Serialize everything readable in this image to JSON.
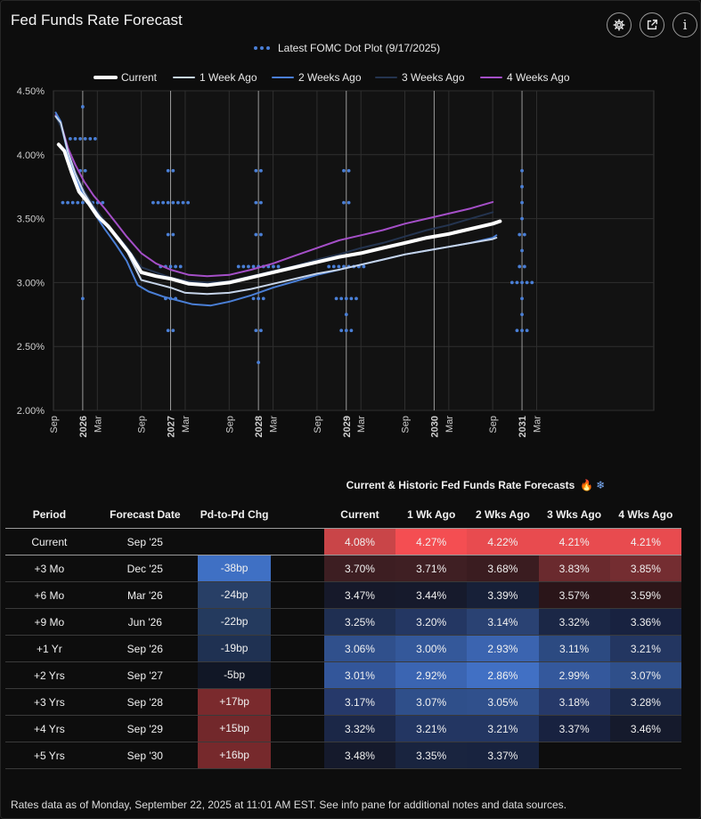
{
  "header": {
    "title": "Fed Funds Rate Forecast",
    "settings_icon": "gear-icon",
    "share_icon": "external-link-icon",
    "info_icon": "info-icon",
    "info_label": "i"
  },
  "chart_data": {
    "type": "line",
    "title": "Fed Funds Rate Forecast",
    "dot_plot_label": "Latest FOMC Dot Plot (9/17/2025)",
    "ylim": [
      2.0,
      4.5
    ],
    "yticks": [
      "2.00%",
      "2.50%",
      "3.00%",
      "3.50%",
      "4.00%",
      "4.50%"
    ],
    "ytick_values": [
      2.0,
      2.5,
      3.0,
      3.5,
      4.0,
      4.5
    ],
    "xlim": [
      0,
      82
    ],
    "xticks": [
      {
        "label": "Sep",
        "m": 0,
        "bold": false
      },
      {
        "label": "2026",
        "m": 4,
        "bold": true
      },
      {
        "label": "Mar",
        "m": 6,
        "bold": false
      },
      {
        "label": "Sep",
        "m": 12,
        "bold": false
      },
      {
        "label": "2027",
        "m": 16,
        "bold": true
      },
      {
        "label": "Mar",
        "m": 18,
        "bold": false
      },
      {
        "label": "Sep",
        "m": 24,
        "bold": false
      },
      {
        "label": "2028",
        "m": 28,
        "bold": true
      },
      {
        "label": "Mar",
        "m": 30,
        "bold": false
      },
      {
        "label": "Sep",
        "m": 36,
        "bold": false
      },
      {
        "label": "2029",
        "m": 40,
        "bold": true
      },
      {
        "label": "Mar",
        "m": 42,
        "bold": false
      },
      {
        "label": "Sep",
        "m": 48,
        "bold": false
      },
      {
        "label": "2030",
        "m": 52,
        "bold": true
      },
      {
        "label": "Mar",
        "m": 54,
        "bold": false
      },
      {
        "label": "Sep",
        "m": 60,
        "bold": false
      },
      {
        "label": "2031",
        "m": 64,
        "bold": true
      },
      {
        "label": "Mar",
        "m": 66,
        "bold": false
      }
    ],
    "series": [
      {
        "name": "Current",
        "color": "#ffffff",
        "width": 4,
        "points": [
          [
            0.7,
            4.08
          ],
          [
            1.5,
            4.03
          ],
          [
            2.5,
            3.86
          ],
          [
            3.5,
            3.71
          ],
          [
            4.8,
            3.62
          ],
          [
            6,
            3.52
          ],
          [
            7.5,
            3.44
          ],
          [
            9,
            3.33
          ],
          [
            10.5,
            3.22
          ],
          [
            12,
            3.08
          ],
          [
            14,
            3.05
          ],
          [
            16,
            3.03
          ],
          [
            18.5,
            2.99
          ],
          [
            21,
            2.98
          ],
          [
            24,
            3.0
          ],
          [
            27,
            3.04
          ],
          [
            30,
            3.08
          ],
          [
            33,
            3.12
          ],
          [
            36,
            3.16
          ],
          [
            39,
            3.2
          ],
          [
            42,
            3.23
          ],
          [
            45,
            3.27
          ],
          [
            48,
            3.31
          ],
          [
            51,
            3.35
          ],
          [
            54,
            3.38
          ],
          [
            57,
            3.42
          ],
          [
            60,
            3.46
          ],
          [
            61,
            3.48
          ]
        ]
      },
      {
        "name": "1 Week Ago",
        "color": "#c7d5ea",
        "width": 2,
        "points": [
          [
            0.3,
            4.3
          ],
          [
            1,
            4.25
          ],
          [
            2,
            4.02
          ],
          [
            3,
            3.85
          ],
          [
            4.2,
            3.7
          ],
          [
            5.5,
            3.58
          ],
          [
            7,
            3.46
          ],
          [
            8.5,
            3.36
          ],
          [
            10,
            3.25
          ],
          [
            12,
            3.02
          ],
          [
            14,
            2.99
          ],
          [
            16,
            2.96
          ],
          [
            18,
            2.92
          ],
          [
            21,
            2.91
          ],
          [
            24,
            2.92
          ],
          [
            27,
            2.95
          ],
          [
            30,
            2.99
          ],
          [
            33,
            3.03
          ],
          [
            36,
            3.07
          ],
          [
            39,
            3.1
          ],
          [
            42,
            3.14
          ],
          [
            45,
            3.18
          ],
          [
            48,
            3.22
          ],
          [
            51,
            3.25
          ],
          [
            54,
            3.28
          ],
          [
            57,
            3.31
          ],
          [
            60,
            3.34
          ],
          [
            60.5,
            3.35
          ]
        ]
      },
      {
        "name": "2 Weeks Ago",
        "color": "#4a7fd6",
        "width": 2,
        "points": [
          [
            0.3,
            4.33
          ],
          [
            1,
            4.26
          ],
          [
            2,
            4.0
          ],
          [
            3,
            3.83
          ],
          [
            4.2,
            3.67
          ],
          [
            5.5,
            3.55
          ],
          [
            7,
            3.42
          ],
          [
            8.5,
            3.3
          ],
          [
            10,
            3.17
          ],
          [
            11.5,
            2.98
          ],
          [
            13,
            2.93
          ],
          [
            15,
            2.89
          ],
          [
            17,
            2.86
          ],
          [
            19,
            2.83
          ],
          [
            21.5,
            2.82
          ],
          [
            24,
            2.85
          ],
          [
            27,
            2.9
          ],
          [
            30,
            2.96
          ],
          [
            33,
            3.01
          ],
          [
            36,
            3.06
          ],
          [
            39,
            3.1
          ],
          [
            42,
            3.14
          ],
          [
            45,
            3.18
          ],
          [
            48,
            3.22
          ],
          [
            51,
            3.25
          ],
          [
            54,
            3.28
          ],
          [
            57,
            3.31
          ],
          [
            60,
            3.35
          ],
          [
            60.5,
            3.37
          ]
        ]
      },
      {
        "name": "3 Weeks Ago",
        "color": "#24344f",
        "width": 2,
        "points": [
          [
            0.3,
            4.3
          ],
          [
            1,
            4.22
          ],
          [
            2,
            4.02
          ],
          [
            3,
            3.87
          ],
          [
            4.2,
            3.72
          ],
          [
            5.5,
            3.6
          ],
          [
            7,
            3.48
          ],
          [
            8.5,
            3.38
          ],
          [
            10,
            3.28
          ],
          [
            12,
            3.12
          ],
          [
            14,
            3.08
          ],
          [
            16,
            3.04
          ],
          [
            18.5,
            3.01
          ],
          [
            21,
            3.0
          ],
          [
            24,
            3.01
          ],
          [
            27,
            3.05
          ],
          [
            30,
            3.09
          ],
          [
            33,
            3.13
          ],
          [
            36,
            3.18
          ],
          [
            39,
            3.22
          ],
          [
            42,
            3.27
          ],
          [
            45,
            3.31
          ],
          [
            48,
            3.36
          ],
          [
            51,
            3.41
          ],
          [
            54,
            3.45
          ],
          [
            57,
            3.5
          ],
          [
            60,
            3.55
          ]
        ]
      },
      {
        "name": "4 Weeks Ago",
        "color": "#a54fc8",
        "width": 2,
        "points": [
          [
            0.3,
            4.31
          ],
          [
            1,
            4.25
          ],
          [
            2,
            4.05
          ],
          [
            3,
            3.92
          ],
          [
            4.2,
            3.79
          ],
          [
            5.5,
            3.68
          ],
          [
            7,
            3.58
          ],
          [
            8.5,
            3.47
          ],
          [
            10,
            3.36
          ],
          [
            12,
            3.23
          ],
          [
            14,
            3.15
          ],
          [
            16,
            3.1
          ],
          [
            18.5,
            3.06
          ],
          [
            21,
            3.05
          ],
          [
            24,
            3.06
          ],
          [
            27,
            3.1
          ],
          [
            30,
            3.15
          ],
          [
            33,
            3.21
          ],
          [
            36,
            3.27
          ],
          [
            39,
            3.33
          ],
          [
            42,
            3.37
          ],
          [
            45,
            3.41
          ],
          [
            48,
            3.46
          ],
          [
            51,
            3.5
          ],
          [
            54,
            3.54
          ],
          [
            57,
            3.58
          ],
          [
            60,
            3.63
          ]
        ]
      }
    ],
    "dot_plot": [
      {
        "m": 4,
        "dots": [
          [
            4.375,
            1
          ],
          [
            4.125,
            6
          ],
          [
            3.875,
            2
          ],
          [
            3.625,
            9
          ],
          [
            2.875,
            1
          ]
        ]
      },
      {
        "m": 16,
        "dots": [
          [
            3.875,
            2
          ],
          [
            3.625,
            8
          ],
          [
            3.375,
            2
          ],
          [
            3.125,
            5
          ],
          [
            2.875,
            3
          ],
          [
            2.625,
            2
          ]
        ]
      },
      {
        "m": 28,
        "dots": [
          [
            3.875,
            2
          ],
          [
            3.625,
            2
          ],
          [
            3.375,
            2
          ],
          [
            3.125,
            9
          ],
          [
            2.875,
            3
          ],
          [
            2.625,
            2
          ],
          [
            2.375,
            1
          ]
        ]
      },
      {
        "m": 40,
        "dots": [
          [
            3.875,
            2
          ],
          [
            3.625,
            2
          ],
          [
            3.125,
            8
          ],
          [
            2.875,
            5
          ],
          [
            2.75,
            1
          ],
          [
            2.625,
            3
          ]
        ]
      },
      {
        "m": 64,
        "dots": [
          [
            3.875,
            1
          ],
          [
            3.75,
            1
          ],
          [
            3.625,
            1
          ],
          [
            3.5,
            1
          ],
          [
            3.375,
            2
          ],
          [
            3.25,
            1
          ],
          [
            3.125,
            2
          ],
          [
            3.0,
            5
          ],
          [
            2.875,
            1
          ],
          [
            2.75,
            1
          ],
          [
            2.625,
            3
          ]
        ]
      }
    ],
    "dot_color": "#4a7fd6",
    "legend": [
      "Current",
      "1 Week Ago",
      "2 Weeks Ago",
      "3 Weeks Ago",
      "4 Weeks Ago"
    ]
  },
  "table": {
    "title": "Current & Historic Fed Funds Rate Forecasts",
    "flame_icon": "🔥",
    "snow_icon": "❄",
    "headers": {
      "period": "Period",
      "date": "Forecast Date",
      "chg": "Pd-to-Pd Chg",
      "current": "Current",
      "w1": "1 Wk Ago",
      "w2": "2 Wks Ago",
      "w3": "3 Wks Ago",
      "w4": "4 Wks Ago"
    },
    "rows": [
      {
        "period": "Current",
        "date": "Sep '25",
        "chg": "",
        "chg_color": "",
        "current": "4.08%",
        "w1": "4.27%",
        "w2": "4.22%",
        "w3": "4.21%",
        "w4": "4.21%",
        "colors": [
          "#c94548",
          "#f44e52",
          "#e84b4f",
          "#e84b4f",
          "#e84b4f"
        ]
      },
      {
        "period": "+3 Mo",
        "date": "Dec '25",
        "chg": "-38bp",
        "chg_color": "#3f70c4",
        "current": "3.70%",
        "w1": "3.71%",
        "w2": "3.68%",
        "w3": "3.83%",
        "w4": "3.85%",
        "colors": [
          "#3d1e22",
          "#3f1f23",
          "#3a1c20",
          "#6a2a2e",
          "#742d31"
        ]
      },
      {
        "period": "+6 Mo",
        "date": "Mar '26",
        "chg": "-24bp",
        "chg_color": "#283f66",
        "current": "3.47%",
        "w1": "3.44%",
        "w2": "3.39%",
        "w3": "3.57%",
        "w4": "3.59%",
        "colors": [
          "#16192a",
          "#161a2c",
          "#172038",
          "#2a1519",
          "#2d1619"
        ]
      },
      {
        "period": "+9 Mo",
        "date": "Jun '26",
        "chg": "-22bp",
        "chg_color": "#243a5e",
        "current": "3.25%",
        "w1": "3.20%",
        "w2": "3.14%",
        "w3": "3.32%",
        "w4": "3.36%",
        "colors": [
          "#1f2f52",
          "#243763",
          "#2a4273",
          "#1b2746",
          "#182240"
        ]
      },
      {
        "period": "+1 Yr",
        "date": "Sep '26",
        "chg": "-19bp",
        "chg_color": "#1f3152",
        "current": "3.06%",
        "w1": "3.00%",
        "w2": "2.93%",
        "w3": "3.11%",
        "w4": "3.21%",
        "colors": [
          "#30508c",
          "#34589a",
          "#3b64b0",
          "#2c4a81",
          "#233661"
        ]
      },
      {
        "period": "+2 Yrs",
        "date": "Sep '27",
        "chg": "-5bp",
        "chg_color": "#111726",
        "current": "3.01%",
        "w1": "2.92%",
        "w2": "2.86%",
        "w3": "2.99%",
        "w4": "3.07%",
        "colors": [
          "#33569a",
          "#3b65b2",
          "#4170c4",
          "#34589c",
          "#2f4f8a"
        ]
      },
      {
        "period": "+3 Yrs",
        "date": "Sep '28",
        "chg": "+17bp",
        "chg_color": "#7a2a2d",
        "current": "3.17%",
        "w1": "3.07%",
        "w2": "3.05%",
        "w3": "3.18%",
        "w4": "3.28%",
        "colors": [
          "#26396a",
          "#2f4f8a",
          "#30508c",
          "#263969",
          "#1c2a4c"
        ]
      },
      {
        "period": "+4 Yrs",
        "date": "Sep '29",
        "chg": "+15bp",
        "chg_color": "#72282b",
        "current": "3.32%",
        "w1": "3.21%",
        "w2": "3.21%",
        "w3": "3.37%",
        "w4": "3.46%",
        "colors": [
          "#1b2747",
          "#233662",
          "#233662",
          "#182240",
          "#151a2c"
        ]
      },
      {
        "period": "+5 Yrs",
        "date": "Sep '30",
        "chg": "+16bp",
        "chg_color": "#76292c",
        "current": "3.48%",
        "w1": "3.35%",
        "w2": "3.37%",
        "w3": "",
        "w4": "",
        "colors": [
          "#151a2c",
          "#19243f",
          "#18233f",
          "",
          ""
        ]
      }
    ]
  },
  "footer": {
    "text": "Rates data as of Monday, September 22, 2025 at 11:01 AM EST.  See info pane for additional notes and data sources."
  }
}
